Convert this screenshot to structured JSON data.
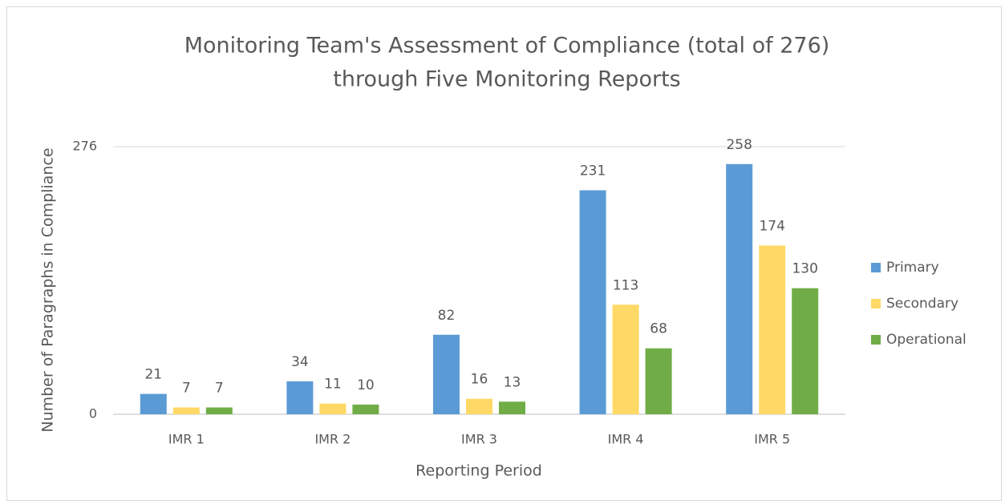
{
  "chart_data": {
    "type": "bar",
    "title": [
      "Monitoring Team's Assessment of Compliance (total of 276)",
      "through Five Monitoring Reports"
    ],
    "xlabel": "Reporting Period",
    "ylabel": "Number of Paragraphs in Compliance",
    "categories": [
      "IMR 1",
      "IMR 2",
      "IMR 3",
      "IMR 4",
      "IMR 5"
    ],
    "series": [
      {
        "name": "Primary",
        "color": "#5b9bd5",
        "values": [
          21,
          34,
          82,
          231,
          258
        ]
      },
      {
        "name": "Secondary",
        "color": "#ffd966",
        "values": [
          7,
          11,
          16,
          113,
          174
        ]
      },
      {
        "name": "Operational",
        "color": "#70ad47",
        "values": [
          7,
          10,
          13,
          68,
          130
        ]
      }
    ],
    "ylim": [
      0,
      276
    ],
    "yticks": [
      0,
      276
    ],
    "grid": true,
    "legend": "right"
  }
}
